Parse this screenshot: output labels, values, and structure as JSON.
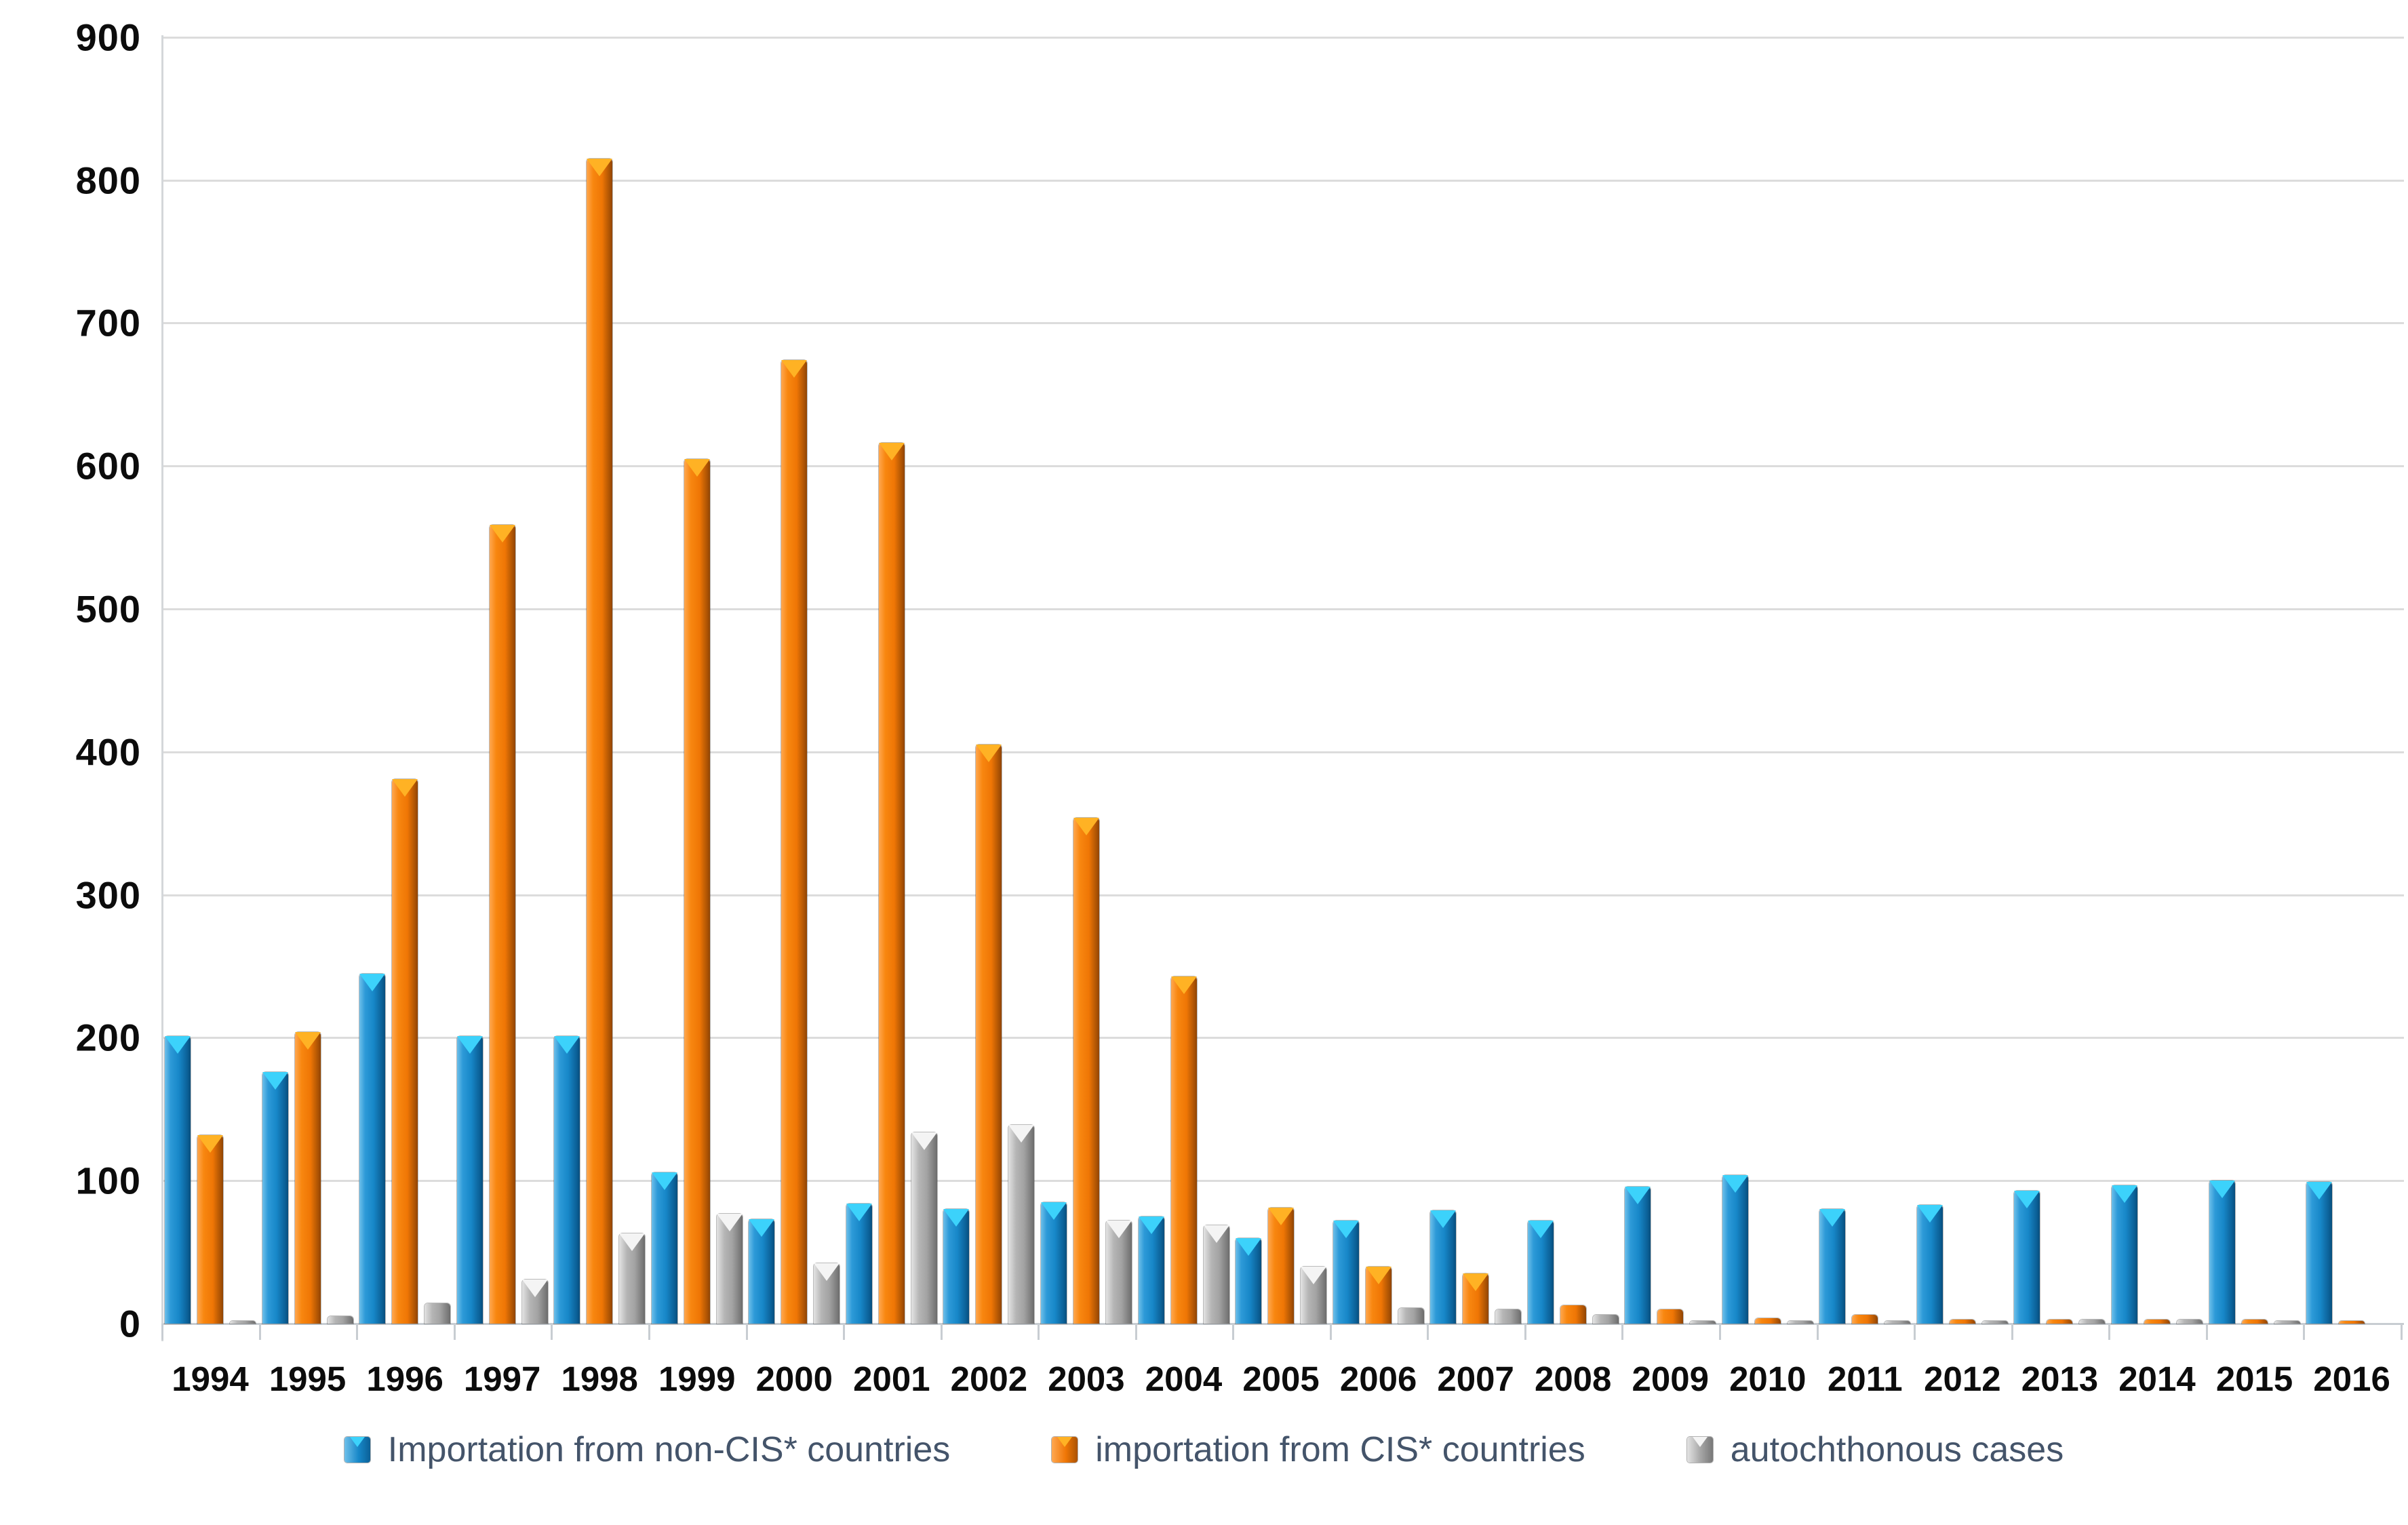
{
  "legend_text_color": "#44546a",
  "gridline_color": "#dcdcdc",
  "chart_data": {
    "type": "bar",
    "title": "",
    "xlabel": "",
    "ylabel": "",
    "ylim": [
      0,
      900
    ],
    "grid": true,
    "legend_position": "bottom",
    "y_ticks": [
      "0",
      "100",
      "200",
      "300",
      "400",
      "500",
      "600",
      "700",
      "800",
      "900"
    ],
    "y_tick_values": [
      0,
      100,
      200,
      300,
      400,
      500,
      600,
      700,
      800,
      900
    ],
    "categories": [
      "1994",
      "1995",
      "1996",
      "1997",
      "1998",
      "1999",
      "2000",
      "2001",
      "2002",
      "2003",
      "2004",
      "2005",
      "2006",
      "2007",
      "2008",
      "2009",
      "2010",
      "2011",
      "2012",
      "2013",
      "2014",
      "2015",
      "2016"
    ],
    "series": [
      {
        "name": "Importation from non-CIS* countries",
        "color": "#1787c8",
        "values": [
          201,
          176,
          245,
          201,
          201,
          106,
          73,
          84,
          80,
          85,
          75,
          60,
          72,
          79,
          72,
          96,
          104,
          80,
          83,
          93,
          97,
          100,
          99
        ]
      },
      {
        "name": "importation from CIS* countries",
        "color": "#ef7605",
        "values": [
          132,
          204,
          381,
          559,
          815,
          605,
          674,
          616,
          405,
          354,
          243,
          81,
          40,
          35,
          13,
          10,
          4,
          6,
          3,
          3,
          3,
          3,
          1
        ]
      },
      {
        "name": "autochthonous cases",
        "color": "#a3a3a3",
        "values": [
          1,
          5,
          14,
          31,
          63,
          77,
          42,
          134,
          139,
          72,
          69,
          40,
          11,
          10,
          6,
          1,
          2,
          2,
          1,
          3,
          3,
          1,
          0
        ]
      }
    ]
  }
}
